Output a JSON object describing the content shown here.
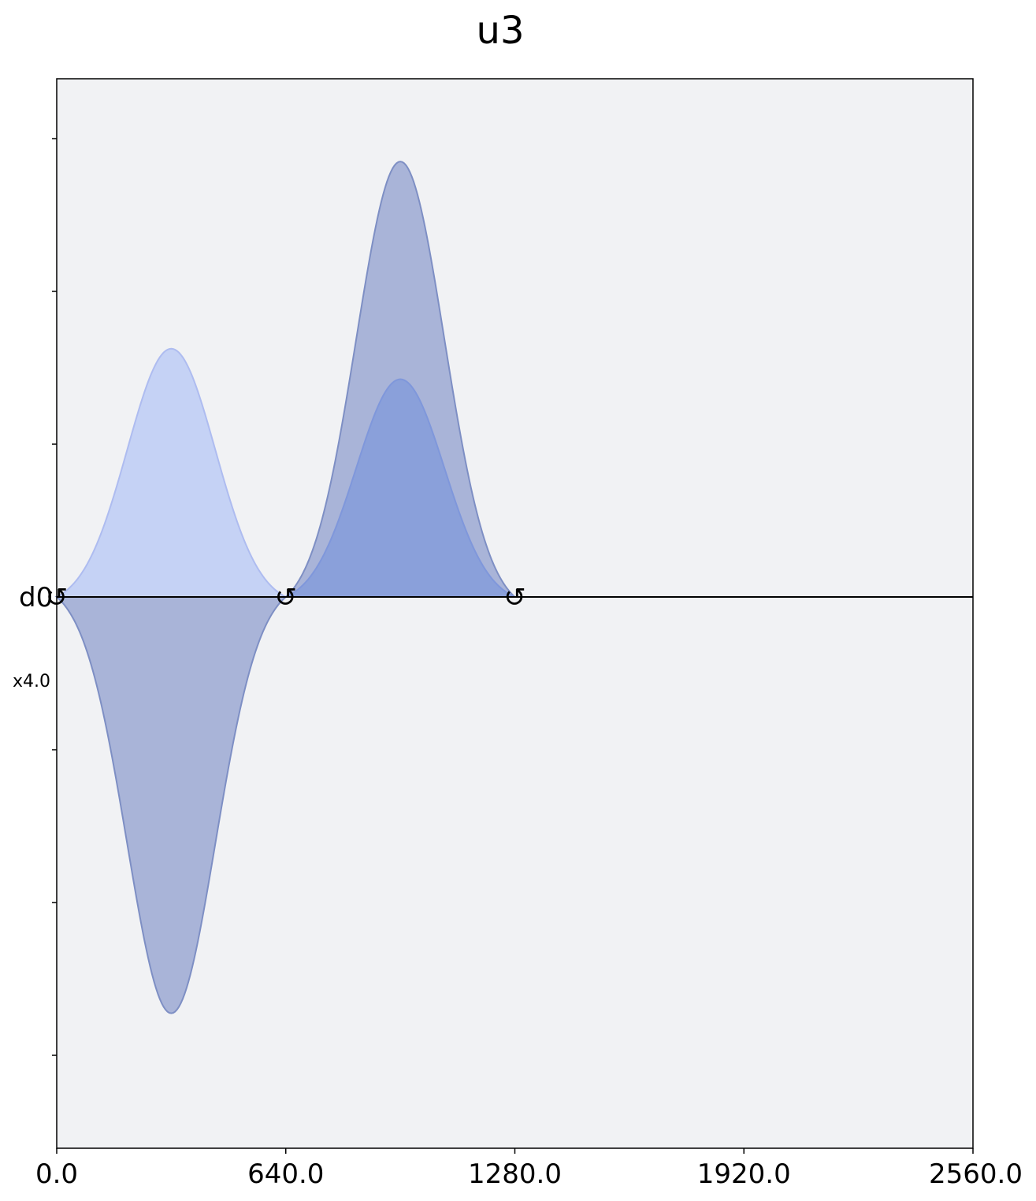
{
  "chart_data": {
    "type": "area",
    "title": "u3",
    "xlabel": "",
    "ylabel": "",
    "xlim": [
      0,
      2560
    ],
    "ylim": [
      -1.4,
      1.4
    ],
    "x_ticks": [
      0,
      640,
      1280,
      1920,
      2560
    ],
    "x_tick_labels": [
      "0.0",
      "640.0",
      "1280.0",
      "1920.0",
      "2560.0"
    ],
    "y_tick_values": [
      1.2,
      0.8,
      0.4,
      -0.4,
      -0.8,
      -1.2
    ],
    "channel": {
      "label": "d0",
      "scale_label": "x4.0"
    },
    "frame_change_markers": [
      {
        "x": 0,
        "symbol": "↺"
      },
      {
        "x": 640,
        "symbol": "↺"
      },
      {
        "x": 1280,
        "symbol": "↺"
      }
    ],
    "pulses": [
      {
        "name": "",
        "t0": 0,
        "duration": 640,
        "real_amplitude": 0.65,
        "imag_amplitude": -1.09
      },
      {
        "name": "",
        "t0": 640,
        "duration": 640,
        "real_amplitude": 0.57,
        "imag_amplitude": 1.14
      }
    ],
    "colors": {
      "real_fill": "#c5d2f5",
      "real_stroke": "#aebcf0",
      "imag_fill": "#a9b4d8",
      "imag_stroke": "#7e8fc4",
      "overlap_fill": "#8aa0da",
      "plot_background": "#f1f2f4",
      "baseline": "#000000"
    },
    "grid": false
  }
}
